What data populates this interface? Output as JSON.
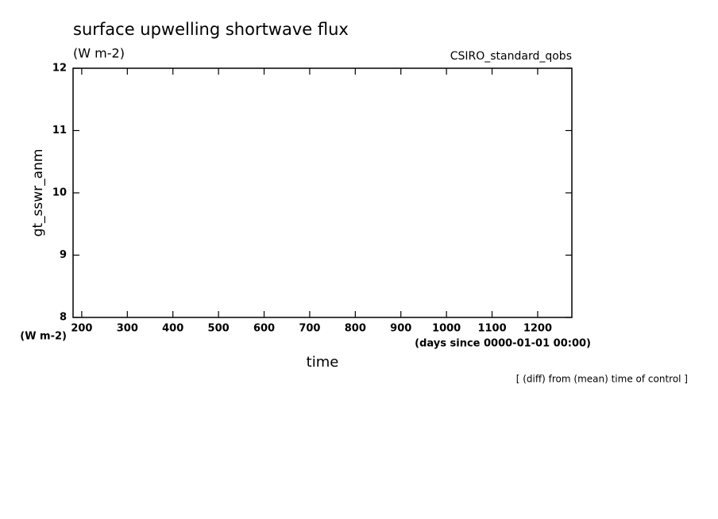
{
  "chart_data": {
    "type": "line",
    "title": "surface upwelling shortwave flux",
    "subtitle": "(W m-2)",
    "annotation": "CSIRO_standard_qobs",
    "y_label": "gt_sswr_anm",
    "y_unit": "(W m-2)",
    "x_label": "time",
    "x_unit": "(days since 0000-01-01 00:00)",
    "note": "[ (diff) from (mean) time of control ]",
    "xlim": [
      181,
      1275
    ],
    "xticks": [
      200,
      300,
      400,
      500,
      600,
      700,
      800,
      900,
      1000,
      1100,
      1200
    ],
    "ylim": [
      8,
      12
    ],
    "yticks": [
      8,
      9,
      10,
      11,
      12
    ],
    "grid": false
  }
}
